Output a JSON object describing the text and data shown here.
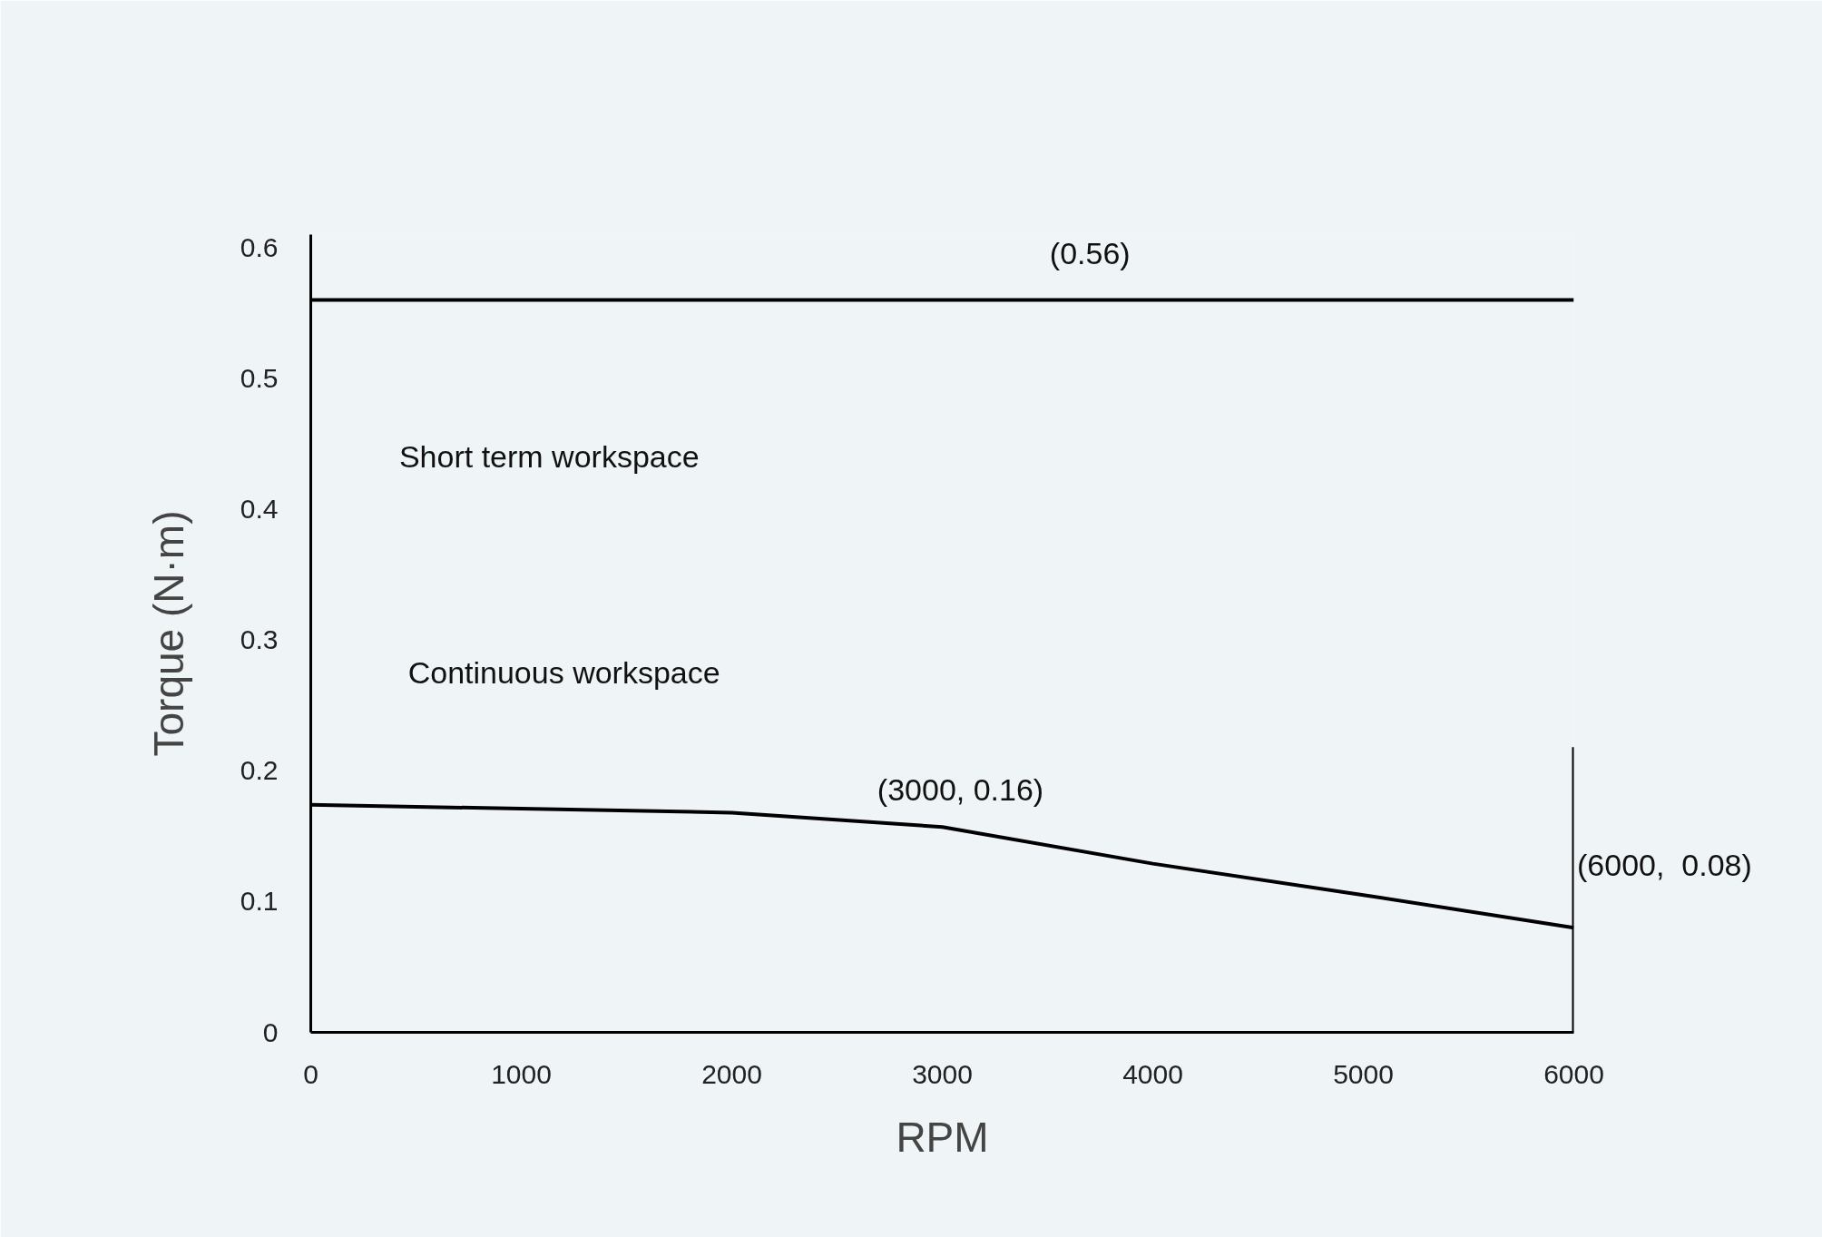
{
  "chart_data": {
    "type": "line",
    "xlabel": "RPM",
    "ylabel": "Torque (N·m)",
    "xlim": [
      0,
      6000
    ],
    "ylim": [
      0,
      0.61
    ],
    "xticks": [
      0,
      1000,
      2000,
      3000,
      4000,
      5000,
      6000
    ],
    "yticks": [
      0,
      0.1,
      0.2,
      0.3,
      0.4,
      0.5,
      0.6
    ],
    "grid": false,
    "marker": "none",
    "line_style": "solid",
    "series": [
      {
        "color": "#000000",
        "x": [
          0,
          6000
        ],
        "values": [
          0.56,
          0.56
        ]
      },
      {
        "color": "#000000",
        "x": [
          0,
          1000,
          2000,
          3000,
          4000,
          5000,
          6000
        ],
        "values": [
          0.174,
          0.171,
          0.168,
          0.157,
          0.129,
          0.105,
          0.08
        ]
      },
      {
        "color": "#000000",
        "x": [
          6000,
          6000
        ],
        "values": [
          0,
          0.218
        ]
      }
    ],
    "annotations": [
      "(0.56)",
      "Short term workspace",
      "Continuous workspace",
      {
        "text": "(3000, 0.16)",
        "x": 3000,
        "y": 0.16
      },
      {
        "text": "(6000,  0.08)",
        "x": 6000,
        "y": 0.08
      }
    ]
  }
}
